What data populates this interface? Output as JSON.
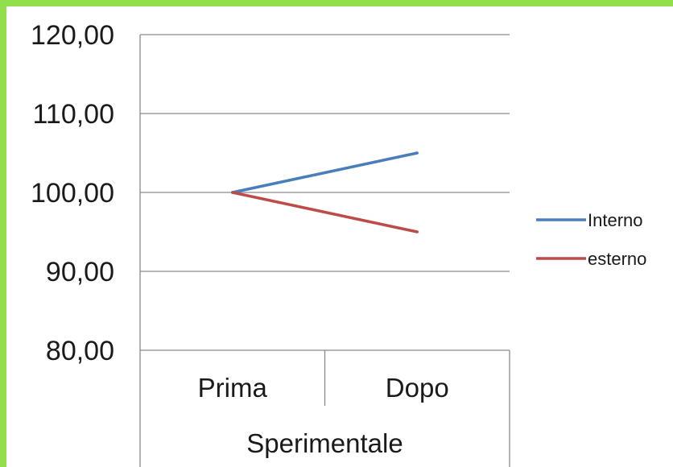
{
  "chart_data": {
    "type": "line",
    "title": "",
    "xlabel": "",
    "ylabel": "",
    "categories": [
      "Prima",
      "Dopo"
    ],
    "group_label": "Sperimentale",
    "y_ticks": [
      "80,00",
      "90,00",
      "100,00",
      "110,00",
      "120,00"
    ],
    "ylim": [
      80,
      120
    ],
    "grid": true,
    "legend_position": "right",
    "series": [
      {
        "name": "Interno",
        "values": [
          100,
          105
        ],
        "color": "#4a7ebb"
      },
      {
        "name": "esterno",
        "values": [
          100,
          95
        ],
        "color": "#be4b48"
      }
    ]
  }
}
